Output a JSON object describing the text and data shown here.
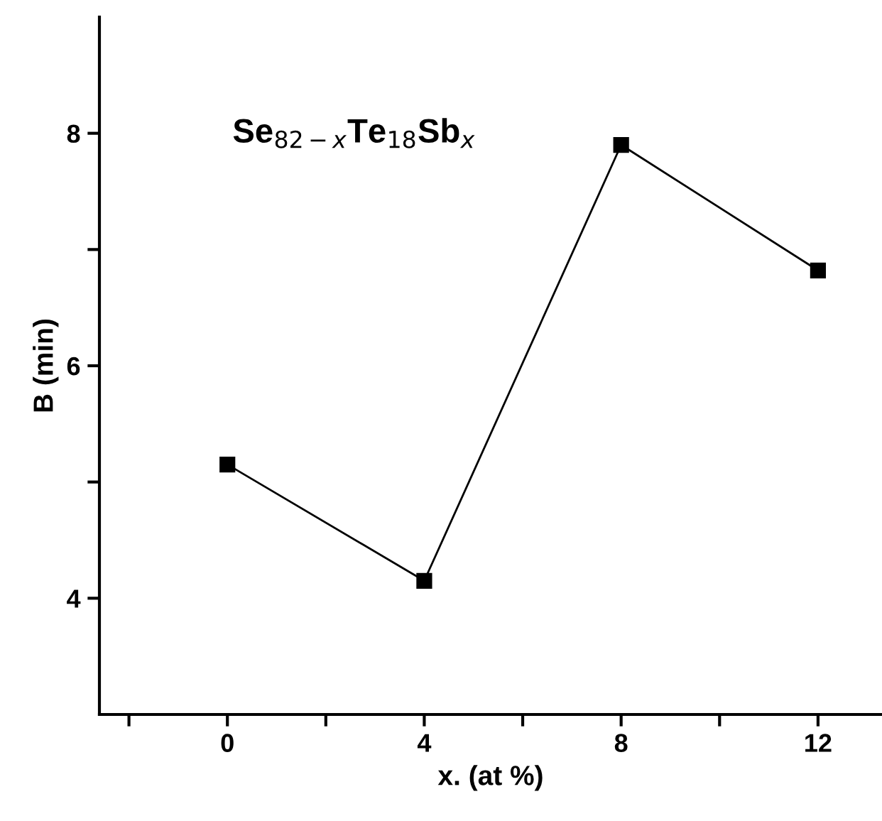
{
  "chart_data": {
    "type": "line",
    "xlabel": "x. (at %)",
    "ylabel": "B (min)",
    "annotations": [
      "Se$_{82−x}$Te$_{18}$Sb$_{x}$"
    ],
    "x": [
      0,
      4,
      8,
      12
    ],
    "series": [
      {
        "color": "#000000",
        "values": [
          5.15,
          4.15,
          7.9,
          6.82
        ]
      }
    ],
    "marker": "square",
    "line_style": "solid",
    "grid": false,
    "legend": false,
    "xlim": [
      -2.6,
      13.3
    ],
    "ylim": [
      3,
      9
    ],
    "xticks": [
      {
        "value": -2,
        "label": null
      },
      0,
      {
        "value": 2,
        "label": null
      },
      4,
      {
        "value": 6,
        "label": null
      },
      8,
      {
        "value": 10,
        "label": null
      },
      12
    ],
    "yticks": [
      4,
      {
        "value": 5,
        "label": null
      },
      6,
      {
        "value": 7,
        "label": null
      },
      8
    ]
  }
}
